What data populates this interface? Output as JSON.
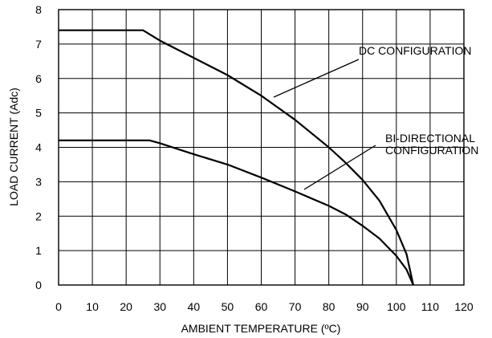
{
  "chart_data": {
    "type": "line",
    "title": "",
    "xlabel": "AMBIENT TEMPERATURE (ºC)",
    "ylabel": "LOAD CURRENT (Adc)",
    "xlim": [
      0,
      120
    ],
    "ylim": [
      0,
      8
    ],
    "xticks": [
      0,
      10,
      20,
      30,
      40,
      50,
      60,
      70,
      80,
      90,
      100,
      110,
      120
    ],
    "yticks": [
      0,
      1,
      2,
      3,
      4,
      5,
      6,
      7,
      8
    ],
    "grid": true,
    "series": [
      {
        "name": "DC CONFIGURATION",
        "x": [
          0,
          25,
          30,
          40,
          50,
          60,
          70,
          80,
          85,
          90,
          95,
          100,
          103,
          105
        ],
        "y": [
          7.4,
          7.4,
          7.1,
          6.6,
          6.1,
          5.5,
          4.8,
          4.0,
          3.55,
          3.05,
          2.45,
          1.6,
          0.9,
          0
        ]
      },
      {
        "name": "BI-DIRECTIONAL CONFIGURATION",
        "x": [
          0,
          27,
          30,
          40,
          50,
          60,
          70,
          80,
          85,
          90,
          95,
          100,
          103,
          105
        ],
        "y": [
          4.2,
          4.2,
          4.12,
          3.8,
          3.5,
          3.12,
          2.72,
          2.3,
          2.05,
          1.72,
          1.35,
          0.85,
          0.45,
          0
        ]
      }
    ],
    "annotations": [
      {
        "label": [
          "DC CONFIGURATION"
        ]
      },
      {
        "label": [
          "BI-DIRECTIONAL",
          "CONFIGURATION"
        ]
      }
    ]
  }
}
